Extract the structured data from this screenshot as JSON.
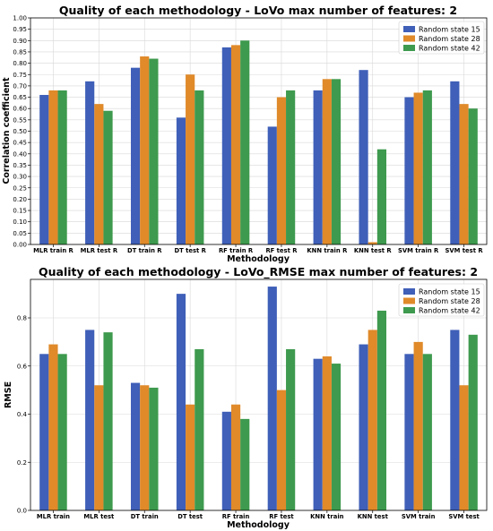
{
  "chart_data": [
    {
      "type": "bar",
      "title": "Quality of each methodology - LoVo max number of features: 2",
      "xlabel": "Methodology",
      "ylabel": "Correlation coefficient",
      "ylim": [
        0,
        1.0
      ],
      "yticks": [
        "0.00",
        "0.05",
        "0.10",
        "0.15",
        "0.20",
        "0.25",
        "0.30",
        "0.35",
        "0.40",
        "0.45",
        "0.50",
        "0.55",
        "0.60",
        "0.65",
        "0.70",
        "0.75",
        "0.80",
        "0.85",
        "0.90",
        "0.95",
        "1.00"
      ],
      "grid": true,
      "legend_position": "top-right",
      "categories": [
        "MLR train R",
        "MLR test R",
        "DT train R",
        "DT test R",
        "RF train R",
        "RF test R",
        "KNN train R",
        "KNN test R",
        "SVM train R",
        "SVM test R"
      ],
      "series": [
        {
          "name": "Random state 15",
          "color": "#3f5fb8",
          "values": [
            0.66,
            0.72,
            0.78,
            0.56,
            0.87,
            0.52,
            0.68,
            0.77,
            0.65,
            0.72
          ]
        },
        {
          "name": "Random state 28",
          "color": "#e08a2a",
          "values": [
            0.68,
            0.62,
            0.83,
            0.75,
            0.88,
            0.65,
            0.73,
            0.01,
            0.67,
            0.62
          ]
        },
        {
          "name": "Random state 42",
          "color": "#3e9a4e",
          "values": [
            0.68,
            0.59,
            0.82,
            0.68,
            0.9,
            0.68,
            0.73,
            0.42,
            0.68,
            0.6
          ]
        }
      ]
    },
    {
      "type": "bar",
      "title": "Quality of each methodology - LoVo_RMSE max number of features: 2",
      "xlabel": "Methodology",
      "ylabel": "RMSE",
      "ylim": [
        0,
        0.96
      ],
      "yticks": [
        "0.0",
        "0.2",
        "0.4",
        "0.6",
        "0.8"
      ],
      "grid": true,
      "legend_position": "top-right",
      "categories": [
        "MLR train",
        "MLR test",
        "DT train",
        "DT test",
        "RF train",
        "RF test",
        "KNN train",
        "KNN test",
        "SVM train",
        "SVM test"
      ],
      "series": [
        {
          "name": "Random state 15",
          "color": "#3f5fb8",
          "values": [
            0.65,
            0.75,
            0.53,
            0.9,
            0.41,
            0.93,
            0.63,
            0.69,
            0.65,
            0.75
          ]
        },
        {
          "name": "Random state 28",
          "color": "#e08a2a",
          "values": [
            0.69,
            0.52,
            0.52,
            0.44,
            0.44,
            0.5,
            0.64,
            0.75,
            0.7,
            0.52
          ]
        },
        {
          "name": "Random state 42",
          "color": "#3e9a4e",
          "values": [
            0.65,
            0.74,
            0.51,
            0.67,
            0.38,
            0.67,
            0.61,
            0.83,
            0.65,
            0.73
          ]
        }
      ]
    }
  ]
}
